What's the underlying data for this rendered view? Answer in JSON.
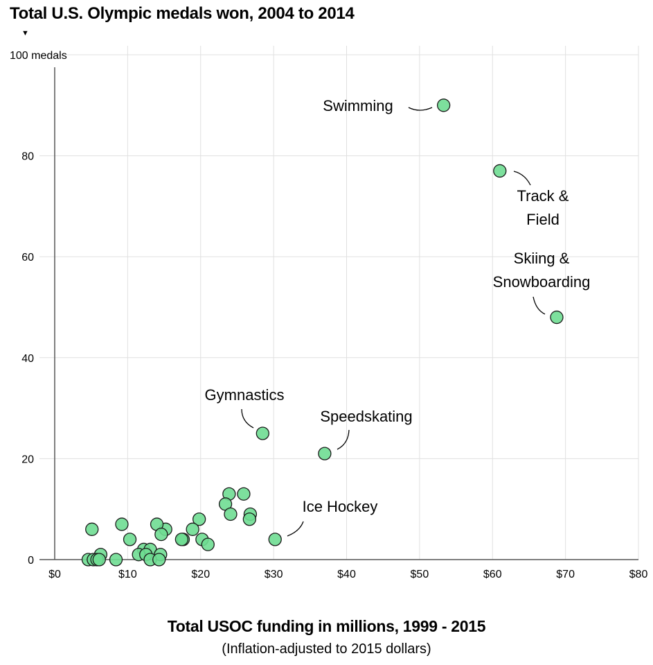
{
  "chart_data": {
    "type": "scatter",
    "title": "Total U.S. Olympic medals won, 2004 to 2014",
    "y_top_label": "100 medals",
    "xlabel": "Total USOC funding in millions, 1999 - 2015",
    "xlabel_sub": "(Inflation-adjusted to 2015 dollars)",
    "xlim": [
      0,
      80
    ],
    "ylim": [
      0,
      100
    ],
    "x_ticks": [
      0,
      10,
      20,
      30,
      40,
      50,
      60,
      70,
      80
    ],
    "x_tick_labels": [
      "$0",
      "$10",
      "$20",
      "$30",
      "$40",
      "$50",
      "$60",
      "$70",
      "$80"
    ],
    "y_ticks": [
      0,
      20,
      40,
      60,
      80,
      100
    ],
    "y_tick_labels": [
      "0",
      "20",
      "40",
      "60",
      "80"
    ],
    "grid": true,
    "marker_color": "#6fdd92",
    "marker_edge": "#1a1a1a",
    "points": [
      {
        "x": 53.3,
        "y": 90
      },
      {
        "x": 61.0,
        "y": 77
      },
      {
        "x": 68.8,
        "y": 48
      },
      {
        "x": 28.5,
        "y": 25
      },
      {
        "x": 37.0,
        "y": 21
      },
      {
        "x": 30.2,
        "y": 4
      },
      {
        "x": 23.9,
        "y": 13
      },
      {
        "x": 25.9,
        "y": 13
      },
      {
        "x": 23.4,
        "y": 11
      },
      {
        "x": 24.1,
        "y": 9
      },
      {
        "x": 26.8,
        "y": 9
      },
      {
        "x": 26.7,
        "y": 8
      },
      {
        "x": 19.8,
        "y": 8
      },
      {
        "x": 18.9,
        "y": 6
      },
      {
        "x": 20.2,
        "y": 4
      },
      {
        "x": 21.0,
        "y": 3
      },
      {
        "x": 17.6,
        "y": 4
      },
      {
        "x": 17.4,
        "y": 4
      },
      {
        "x": 15.2,
        "y": 6
      },
      {
        "x": 14.0,
        "y": 7
      },
      {
        "x": 14.6,
        "y": 5
      },
      {
        "x": 9.2,
        "y": 7
      },
      {
        "x": 10.3,
        "y": 4
      },
      {
        "x": 5.1,
        "y": 6
      },
      {
        "x": 12.2,
        "y": 2
      },
      {
        "x": 13.1,
        "y": 2
      },
      {
        "x": 11.5,
        "y": 1
      },
      {
        "x": 12.5,
        "y": 1
      },
      {
        "x": 14.5,
        "y": 1
      },
      {
        "x": 6.3,
        "y": 1
      },
      {
        "x": 4.6,
        "y": 0
      },
      {
        "x": 5.3,
        "y": 0
      },
      {
        "x": 5.8,
        "y": 0
      },
      {
        "x": 6.1,
        "y": 0
      },
      {
        "x": 8.4,
        "y": 0
      },
      {
        "x": 13.1,
        "y": 0
      },
      {
        "x": 14.3,
        "y": 0
      }
    ],
    "annotations": [
      {
        "label": [
          "Swimming"
        ],
        "x": 53.3,
        "y": 90
      },
      {
        "label": [
          "Track &",
          "Field"
        ],
        "x": 61.0,
        "y": 77
      },
      {
        "label": [
          "Skiing &",
          "Snowboarding"
        ],
        "x": 68.8,
        "y": 48
      },
      {
        "label": [
          "Gymnastics"
        ],
        "x": 28.5,
        "y": 25
      },
      {
        "label": [
          "Speedskating"
        ],
        "x": 37.0,
        "y": 21
      },
      {
        "label": [
          "Ice Hockey"
        ],
        "x": 30.2,
        "y": 4
      }
    ]
  }
}
